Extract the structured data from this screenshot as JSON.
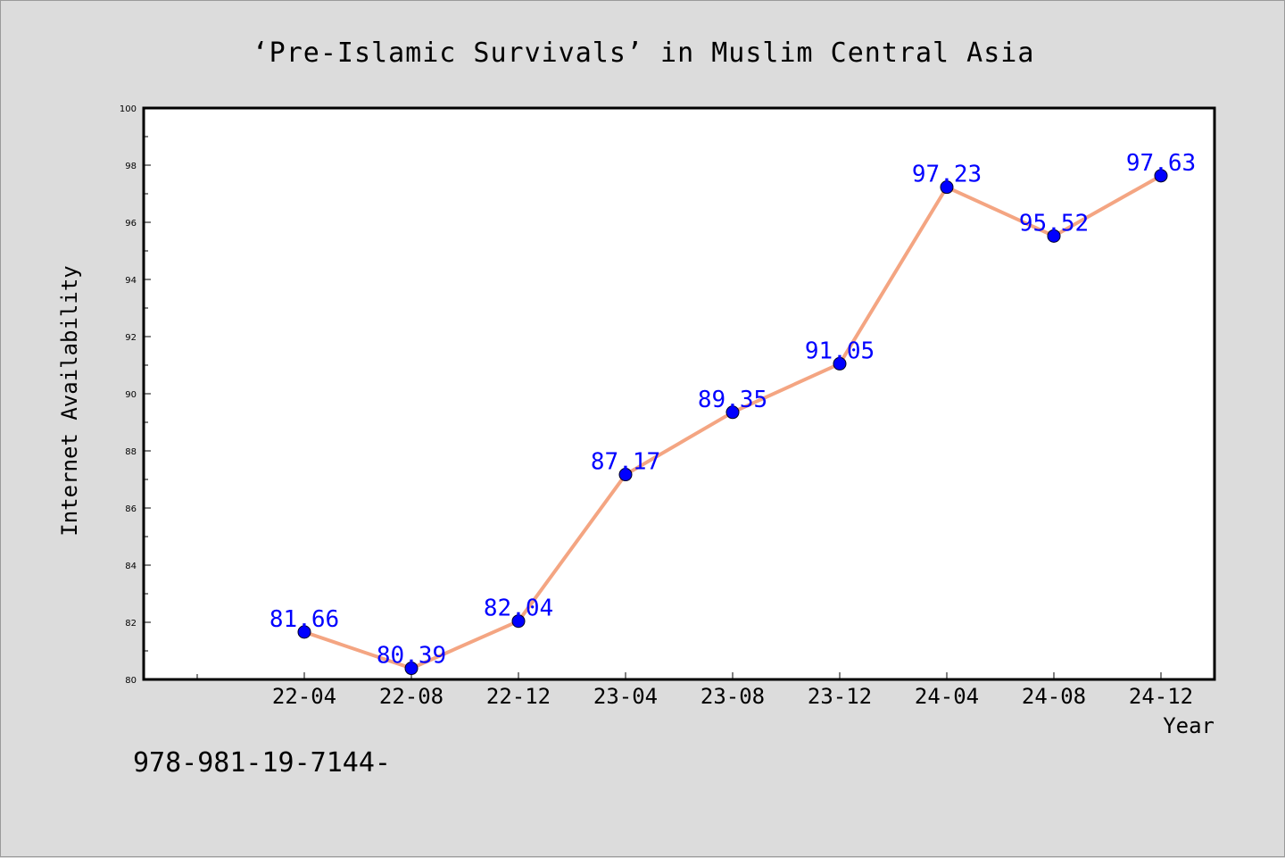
{
  "chart_data": {
    "type": "line",
    "title": "‘Pre-Islamic Survivals’  in Muslim Central Asia",
    "xlabel": "Year",
    "ylabel": "Internet Availability",
    "categories": [
      "22-04",
      "22-08",
      "22-12",
      "23-04",
      "23-08",
      "23-12",
      "24-04",
      "24-08",
      "24-12"
    ],
    "series": [
      {
        "values": [
          81.66,
          80.39,
          82.04,
          87.17,
          89.35,
          91.05,
          97.23,
          95.52,
          97.63
        ]
      }
    ],
    "ylim": [
      80,
      100
    ],
    "yticks": [
      80,
      82,
      84,
      86,
      88,
      90,
      92,
      94,
      96,
      98,
      100
    ],
    "grid": false,
    "data_labels": [
      "81.66",
      "80.39",
      "82.04",
      "87.17",
      "89.35",
      "91.05",
      "97.23",
      "95.52",
      "97.63"
    ],
    "colors": {
      "line": "#f4a582",
      "marker": "#0000ff",
      "label": "#0000ff",
      "plot_bg": "#ffffff",
      "page_bg": "#dcdcdc"
    }
  },
  "footnote": "978-981-19-7144-"
}
